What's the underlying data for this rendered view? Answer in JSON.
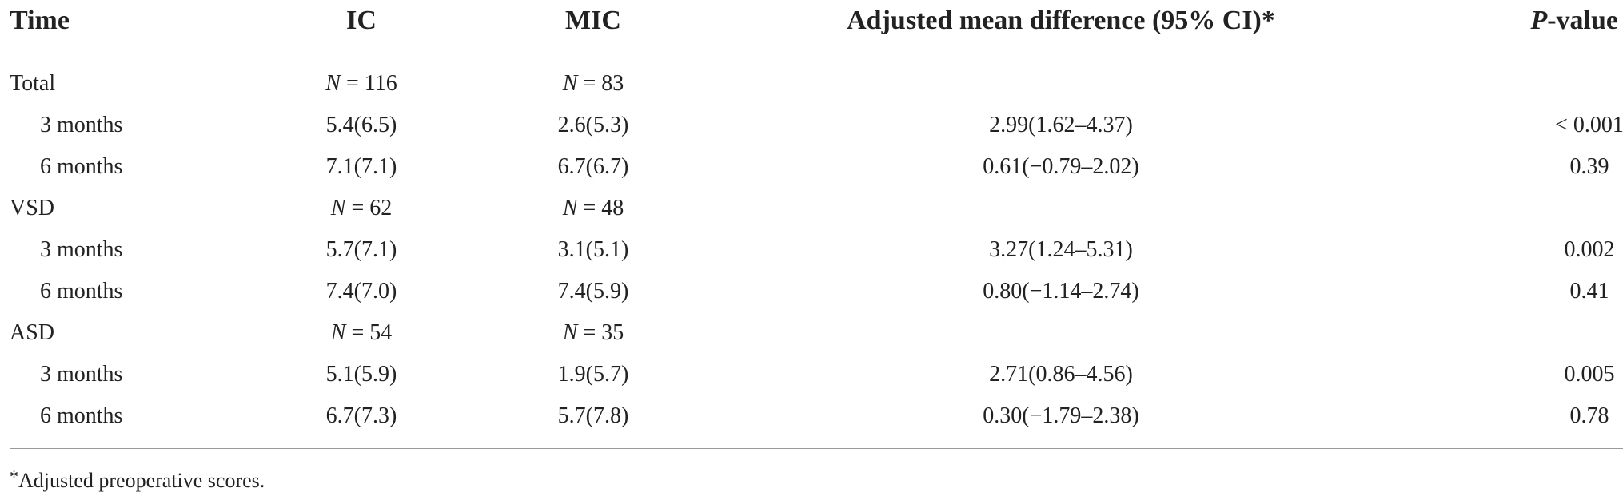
{
  "table": {
    "headers": {
      "time": "Time",
      "ic": "IC",
      "mic": "MIC",
      "adjusted": "Adjusted mean difference (95% CI)*",
      "p_prefix": "P",
      "p_suffix": "-value"
    },
    "groups": [
      {
        "name": "Total",
        "ic_n": "N = 116",
        "mic_n": "N = 83",
        "rows": [
          {
            "time": "3 months",
            "ic": "5.4(6.5)",
            "mic": "2.6(5.3)",
            "adjusted": "2.99(1.62–4.37)",
            "p": "< 0.001"
          },
          {
            "time": "6 months",
            "ic": "7.1(7.1)",
            "mic": "6.7(6.7)",
            "adjusted": "0.61(−0.79–2.02)",
            "p": "0.39"
          }
        ]
      },
      {
        "name": "VSD",
        "ic_n": "N = 62",
        "mic_n": "N = 48",
        "rows": [
          {
            "time": "3 months",
            "ic": "5.7(7.1)",
            "mic": "3.1(5.1)",
            "adjusted": "3.27(1.24–5.31)",
            "p": "0.002"
          },
          {
            "time": "6 months",
            "ic": "7.4(7.0)",
            "mic": "7.4(5.9)",
            "adjusted": "0.80(−1.14–2.74)",
            "p": "0.41"
          }
        ]
      },
      {
        "name": "ASD",
        "ic_n": "N = 54",
        "mic_n": "N = 35",
        "rows": [
          {
            "time": "3 months",
            "ic": "5.1(5.9)",
            "mic": "1.9(5.7)",
            "adjusted": "2.71(0.86–4.56)",
            "p": "0.005"
          },
          {
            "time": "6 months",
            "ic": "6.7(7.3)",
            "mic": "5.7(7.8)",
            "adjusted": "0.30(−1.79–2.38)",
            "p": "0.78"
          }
        ]
      }
    ]
  },
  "footnote": {
    "star": "*",
    "text": "Adjusted preoperative scores."
  }
}
